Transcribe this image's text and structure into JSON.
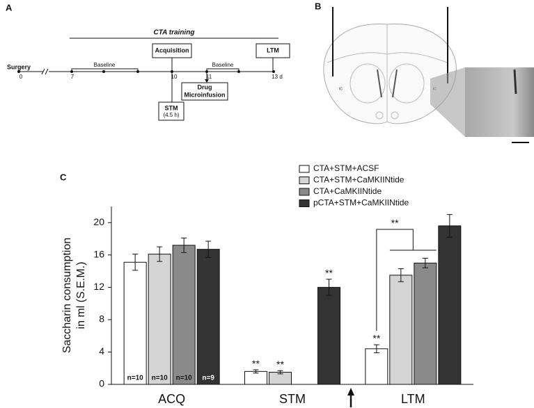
{
  "panel_a": {
    "label": "A",
    "training": "CTA training",
    "surgery": "Surgery",
    "acquisition": "Acquisition",
    "ltm": "LTM",
    "stm": "STM",
    "stm_time": "(4.5 h)",
    "drug": [
      "Drug",
      "Microinfusion"
    ],
    "baseline": [
      "Baseline",
      "Baseline"
    ],
    "days": [
      "0",
      "7",
      "10",
      "11",
      "13 d"
    ]
  },
  "panel_b": {
    "label": "B",
    "region": [
      "IC",
      "IC"
    ]
  },
  "chart_data": {
    "type": "bar",
    "panel_label": "C",
    "y_label": [
      "Saccharin consumption",
      "in ml (S.E.M.)"
    ],
    "categories": [
      "ACQ",
      "STM",
      "LTM"
    ],
    "series": [
      {
        "name": "CTA+STM+ACSF",
        "color": "#ffffff",
        "values": [
          15.1,
          1.6,
          4.4
        ],
        "errors": [
          1.0,
          0.2,
          0.5
        ],
        "annotations": [
          null,
          "**",
          "**"
        ],
        "n_label": "n=10"
      },
      {
        "name": "CTA+STM+CaMKIINtide",
        "color": "#d4d4d4",
        "values": [
          16.1,
          1.5,
          13.5
        ],
        "errors": [
          0.9,
          0.2,
          0.8
        ],
        "annotations": [
          null,
          "**",
          null
        ],
        "n_label": "n=10"
      },
      {
        "name": "CTA+CaMKIINtide",
        "color": "#8a8a8a",
        "values": [
          17.2,
          null,
          15.0
        ],
        "errors": [
          0.9,
          null,
          0.6
        ],
        "annotations": [
          null,
          null,
          null
        ],
        "n_label": "n=10"
      },
      {
        "name": "pCTA+STM+CaMKIINtide",
        "color": "#333333",
        "values": [
          16.7,
          12.0,
          19.6
        ],
        "errors": [
          1.0,
          1.0,
          1.4
        ],
        "annotations": [
          null,
          "**",
          null
        ],
        "n_label": "n=9"
      }
    ],
    "bracket_label": "**",
    "ylim": [
      0,
      22
    ],
    "yticks": [
      0,
      4,
      8,
      12,
      16,
      20
    ]
  }
}
